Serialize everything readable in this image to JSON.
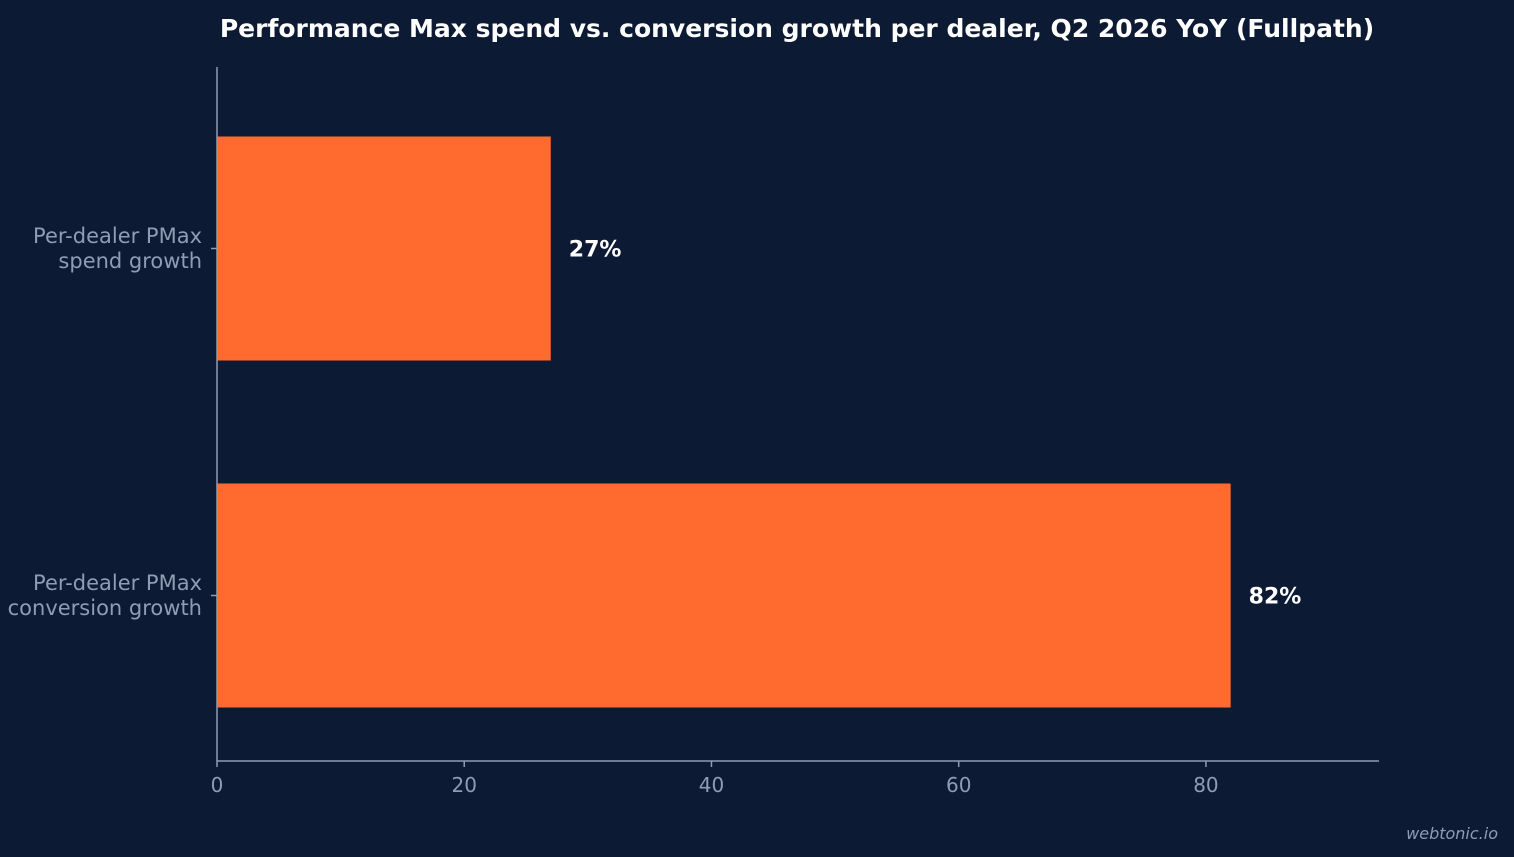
{
  "chart_data": {
    "type": "bar",
    "orientation": "horizontal",
    "title": "Performance Max spend vs. conversion growth per dealer, Q2 2026 YoY (Fullpath)",
    "categories": [
      [
        "Per-dealer PMax",
        "spend growth"
      ],
      [
        "Per-dealer PMax",
        "conversion growth"
      ]
    ],
    "values": [
      27,
      82
    ],
    "value_labels": [
      "27%",
      "82%"
    ],
    "xlabel": "",
    "ylabel": "",
    "xlim": [
      0,
      94
    ],
    "xticks": [
      0,
      20,
      40,
      60,
      80
    ],
    "grid": false,
    "legend": "none"
  },
  "colors": {
    "background": "#0c1b33",
    "bar": "#ff6b2e",
    "axis": "#8f9cb3",
    "muted_text": "#8f9cb3",
    "title_text": "#ffffff"
  },
  "watermark": "webtonic.io"
}
